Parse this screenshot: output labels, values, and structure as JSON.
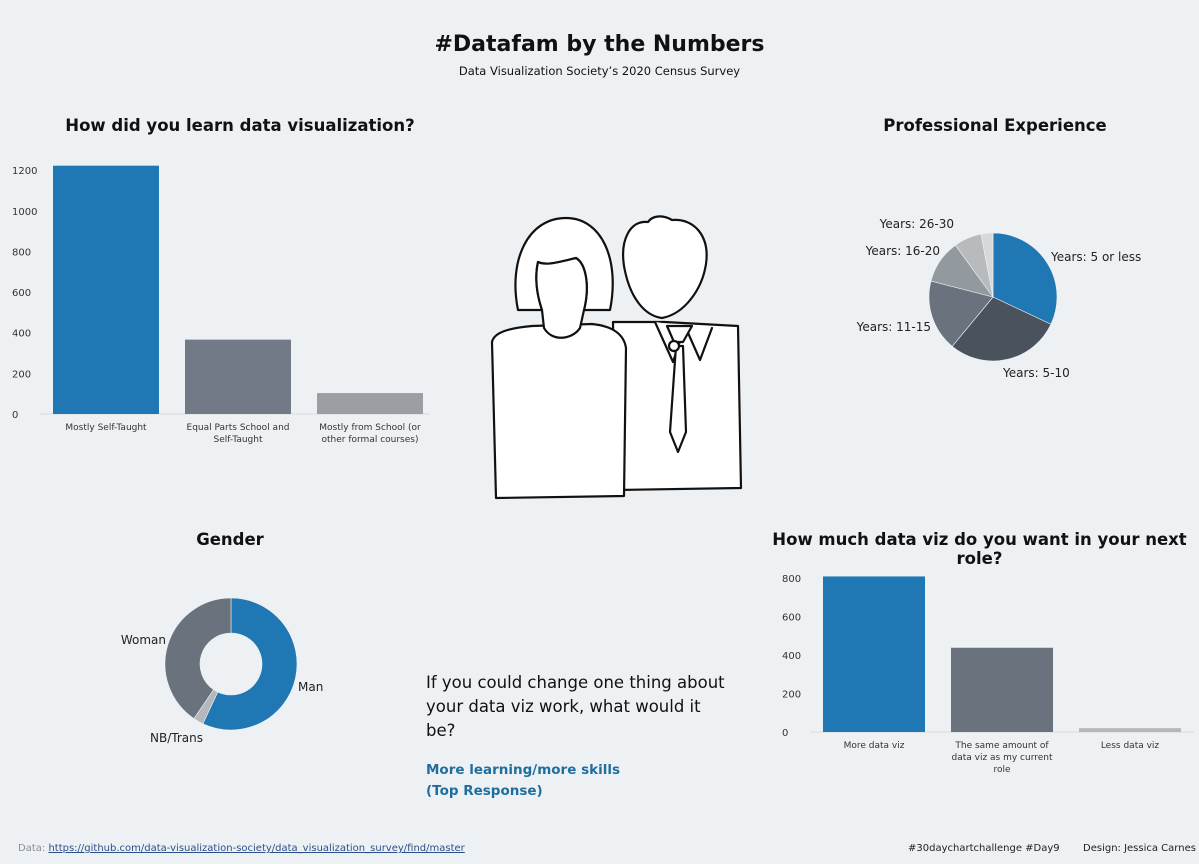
{
  "header": {
    "title": "#Datafam by the Numbers",
    "subtitle": "Data Visualization Society’s 2020 Census Survey"
  },
  "question_block": {
    "question": "If you could change one thing about your data viz work, what would it be?",
    "answer_line1": "More learning/more skills",
    "answer_line2": "(Top Response)"
  },
  "footer": {
    "data_prefix": "Data: ",
    "data_link": "https://github.com/data-visualization-society/data_visualization_survey/find/master",
    "hashtag": "#30daychartchallenge #Day9",
    "design": "Design: Jessica Carnes"
  },
  "illustration": {
    "icon": "woman-and-man-icon"
  },
  "colors": {
    "blue": "#1f77b4",
    "gray_mid": "#717a86",
    "gray_light": "#9b9fa3",
    "dark_slate": "#4a525e",
    "slate": "#69727d"
  },
  "chart_data": [
    {
      "id": "learn",
      "type": "bar",
      "title": "How did you learn data visualization?",
      "categories": [
        "Mostly Self-Taught",
        "Equal Parts School and Self-Taught",
        "Mostly from School (or other formal courses)"
      ],
      "values": [
        1222,
        366,
        103
      ],
      "ylim": [
        0,
        1250
      ],
      "yticks": [
        "0",
        "200",
        "400",
        "600",
        "800",
        "1000",
        "1200"
      ],
      "colors": [
        "#1f77b4",
        "#717a86",
        "#9b9fa3"
      ],
      "xlabel": "",
      "ylabel": ""
    },
    {
      "id": "experience",
      "type": "pie",
      "title": "Professional Experience",
      "labels": [
        "Years: 5 or less",
        "Years: 5-10",
        "Years: 11-15",
        "Years: 16-20",
        "Years: 26-30",
        ""
      ],
      "values": [
        32,
        29,
        18,
        11,
        7,
        3
      ],
      "colors": [
        "#1f77b4",
        "#4a525e",
        "#69727d",
        "#939a9f",
        "#b8bbbe",
        "#d7d8d9"
      ]
    },
    {
      "id": "gender",
      "type": "pie",
      "title": "Gender",
      "donut": true,
      "labels": [
        "Man",
        "NB/Trans",
        "Woman"
      ],
      "values": [
        57,
        2.5,
        40.5
      ],
      "colors": [
        "#1f77b4",
        "#b5b8bb",
        "#69727d"
      ]
    },
    {
      "id": "nextrole",
      "type": "bar",
      "title": "How much data viz do you want in your next role?",
      "categories": [
        "More data viz",
        "The same amount of data viz as my current role",
        "Less data viz"
      ],
      "values": [
        807,
        437,
        20
      ],
      "ylim": [
        0,
        830
      ],
      "yticks": [
        "0",
        "200",
        "400",
        "600",
        "800"
      ],
      "colors": [
        "#1f77b4",
        "#69727d",
        "#b5b8bb"
      ],
      "xlabel": "",
      "ylabel": ""
    }
  ]
}
